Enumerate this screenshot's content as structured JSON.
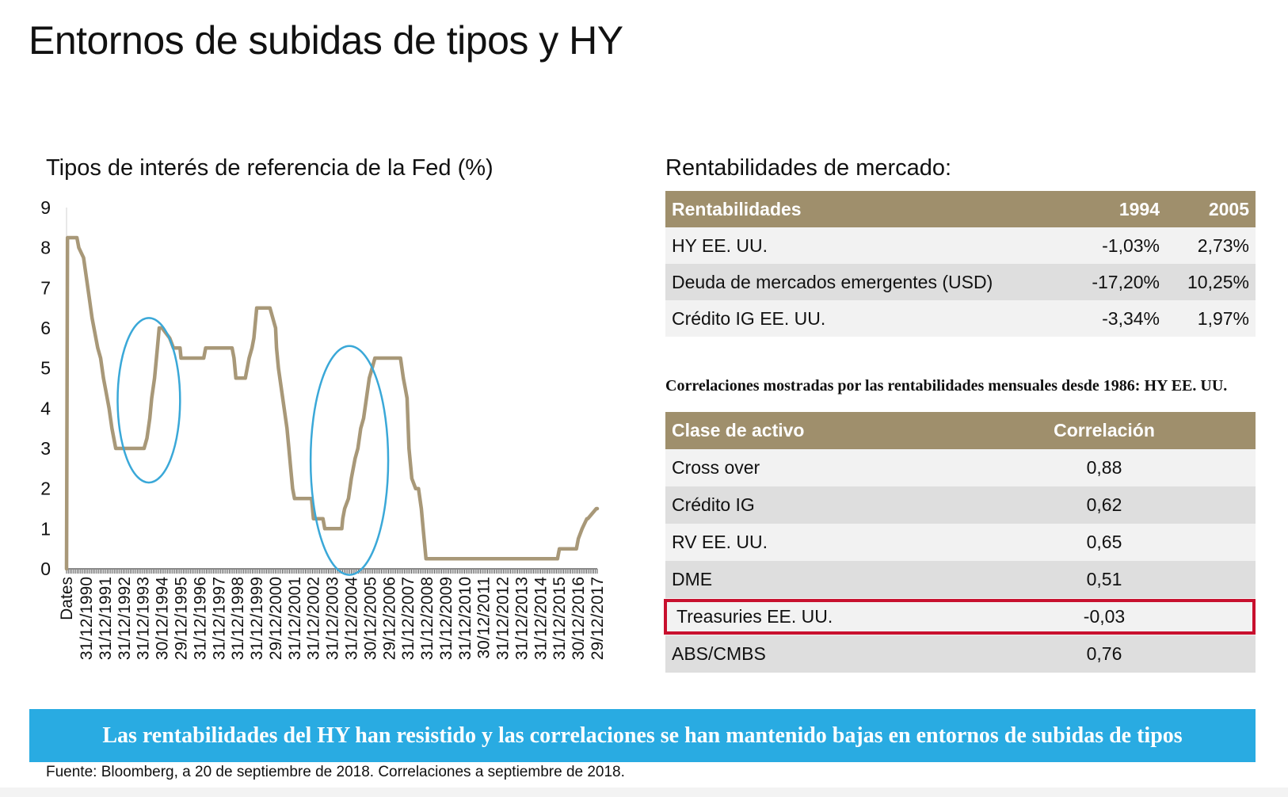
{
  "title": "Entornos de subidas de tipos y HY",
  "chart_data": {
    "type": "line",
    "title": "Tipos de interés de referencia de la Fed (%)",
    "ylim": [
      0,
      9
    ],
    "yticks": [
      0,
      1,
      2,
      3,
      4,
      5,
      6,
      7,
      8,
      9
    ],
    "xlim": [
      1989.95,
      2018.0
    ],
    "xticks": [
      {
        "label": "Dates",
        "x": 1989.95
      },
      {
        "label": "31/12/1990",
        "x": 1991.0
      },
      {
        "label": "31/12/1991",
        "x": 1992.0
      },
      {
        "label": "31/12/1992",
        "x": 1993.0
      },
      {
        "label": "31/12/1993",
        "x": 1994.0
      },
      {
        "label": "30/12/1994",
        "x": 1995.0
      },
      {
        "label": "29/12/1995",
        "x": 1996.0
      },
      {
        "label": "31/12/1996",
        "x": 1997.0
      },
      {
        "label": "31/12/1997",
        "x": 1998.0
      },
      {
        "label": "31/12/1998",
        "x": 1999.0
      },
      {
        "label": "31/12/1999",
        "x": 2000.0
      },
      {
        "label": "29/12/2000",
        "x": 2001.0
      },
      {
        "label": "31/12/2001",
        "x": 2002.0
      },
      {
        "label": "31/12/2002",
        "x": 2003.0
      },
      {
        "label": "31/12/2003",
        "x": 2004.0
      },
      {
        "label": "31/12/2004",
        "x": 2005.0
      },
      {
        "label": "30/12/2005",
        "x": 2006.0
      },
      {
        "label": "29/12/2006",
        "x": 2007.0
      },
      {
        "label": "31/12/2007",
        "x": 2008.0
      },
      {
        "label": "31/12/2008",
        "x": 2009.0
      },
      {
        "label": "31/12/2009",
        "x": 2010.0
      },
      {
        "label": "31/12/2010",
        "x": 2011.0
      },
      {
        "label": "30/12/2011",
        "x": 2012.0
      },
      {
        "label": "31/12/2012",
        "x": 2013.0
      },
      {
        "label": "31/12/2013",
        "x": 2014.0
      },
      {
        "label": "31/12/2014",
        "x": 2015.0
      },
      {
        "label": "31/12/2015",
        "x": 2016.0
      },
      {
        "label": "30/12/2016",
        "x": 2017.0
      },
      {
        "label": "29/12/2017",
        "x": 2018.0
      }
    ],
    "series": [
      {
        "color": "#a89878",
        "x": [
          1989.95,
          1990.0,
          1990.5,
          1990.6,
          1990.85,
          1991.0,
          1991.15,
          1991.3,
          1991.5,
          1991.6,
          1991.75,
          1991.9,
          1992.0,
          1992.2,
          1992.35,
          1992.45,
          1992.55,
          1992.7,
          1994.05,
          1994.2,
          1994.35,
          1994.45,
          1994.6,
          1994.75,
          1994.85,
          1995.0,
          1995.4,
          1995.6,
          1995.95,
          1996.0,
          1997.2,
          1997.3,
          1998.7,
          1998.8,
          1998.9,
          1999.4,
          1999.5,
          1999.6,
          1999.75,
          1999.85,
          2000.0,
          2000.2,
          2000.35,
          2000.5,
          2000.7,
          2001.0,
          2001.05,
          2001.15,
          2001.3,
          2001.45,
          2001.6,
          2001.7,
          2001.8,
          2001.9,
          2002.0,
          2002.9,
          2003.0,
          2003.5,
          2003.6,
          2004.5,
          2004.55,
          2004.65,
          2004.85,
          2005.0,
          2005.2,
          2005.35,
          2005.5,
          2005.65,
          2005.8,
          2005.95,
          2006.1,
          2006.25,
          2006.4,
          2006.5,
          2006.6,
          2007.6,
          2007.75,
          2007.85,
          2007.95,
          2008.05,
          2008.2,
          2008.4,
          2008.55,
          2008.7,
          2008.8,
          2008.95,
          2015.9,
          2016.0,
          2016.9,
          2017.0,
          2017.2,
          2017.45,
          2017.5,
          2017.95,
          2018.0
        ],
        "y": [
          0,
          8.25,
          8.25,
          8.0,
          7.75,
          7.25,
          6.75,
          6.25,
          5.75,
          5.5,
          5.25,
          4.75,
          4.5,
          4.0,
          3.5,
          3.25,
          3.0,
          3.0,
          3.0,
          3.25,
          3.75,
          4.25,
          4.75,
          5.5,
          6.0,
          6.0,
          5.75,
          5.5,
          5.5,
          5.25,
          5.25,
          5.5,
          5.5,
          5.25,
          4.75,
          4.75,
          5.0,
          5.25,
          5.5,
          5.75,
          6.5,
          6.5,
          6.5,
          6.5,
          6.5,
          6.0,
          5.5,
          5.0,
          4.5,
          4.0,
          3.5,
          3.0,
          2.5,
          2.0,
          1.75,
          1.75,
          1.25,
          1.25,
          1.0,
          1.0,
          1.25,
          1.5,
          1.75,
          2.25,
          2.75,
          3.0,
          3.5,
          3.75,
          4.25,
          4.75,
          5.0,
          5.25,
          5.25,
          5.25,
          5.25,
          5.25,
          4.75,
          4.5,
          4.25,
          3.0,
          2.25,
          2.0,
          2.0,
          1.5,
          1.0,
          0.25,
          0.25,
          0.5,
          0.5,
          0.75,
          1.0,
          1.25,
          1.25,
          1.5,
          1.5
        ]
      }
    ],
    "annotations": [
      {
        "type": "ellipse",
        "cx": 1994.3,
        "cy": 4.2,
        "rx": 1.65,
        "ry": 2.05,
        "color": "#3aa8d8"
      },
      {
        "type": "ellipse",
        "cx": 2004.9,
        "cy": 2.7,
        "rx": 2.05,
        "ry": 2.85,
        "color": "#3aa8d8"
      }
    ]
  },
  "returns_table": {
    "heading": "Rentabilidades de mercado:",
    "headers": [
      "Rentabilidades",
      "1994",
      "2005"
    ],
    "rows": [
      [
        "HY EE. UU.",
        "-1,03%",
        "2,73%"
      ],
      [
        "Deuda de mercados emergentes (USD)",
        "-17,20%",
        "10,25%"
      ],
      [
        "Crédito IG EE. UU.",
        "-3,34%",
        "1,97%"
      ]
    ]
  },
  "correlation_table": {
    "heading": "Correlaciones mostradas por las rentabilidades mensuales desde 1986: HY EE. UU.",
    "headers": [
      "Clase de activo",
      "Correlación"
    ],
    "rows": [
      [
        "Cross over",
        "0,88"
      ],
      [
        "Crédito IG",
        "0,62"
      ],
      [
        "RV EE. UU.",
        "0,65"
      ],
      [
        "DME",
        "0,51"
      ],
      [
        "Treasuries EE. UU.",
        "-0,03"
      ],
      [
        "ABS/CMBS",
        "0,76"
      ]
    ],
    "highlight_row": 4,
    "highlight_color": "#c8102e"
  },
  "banner": "Las rentabilidades del HY han resistido y las correlaciones se han mantenido bajas en entornos de subidas de tipos",
  "source": "Fuente: Bloomberg, a 20 de septiembre de 2018. Correlaciones a septiembre de 2018."
}
